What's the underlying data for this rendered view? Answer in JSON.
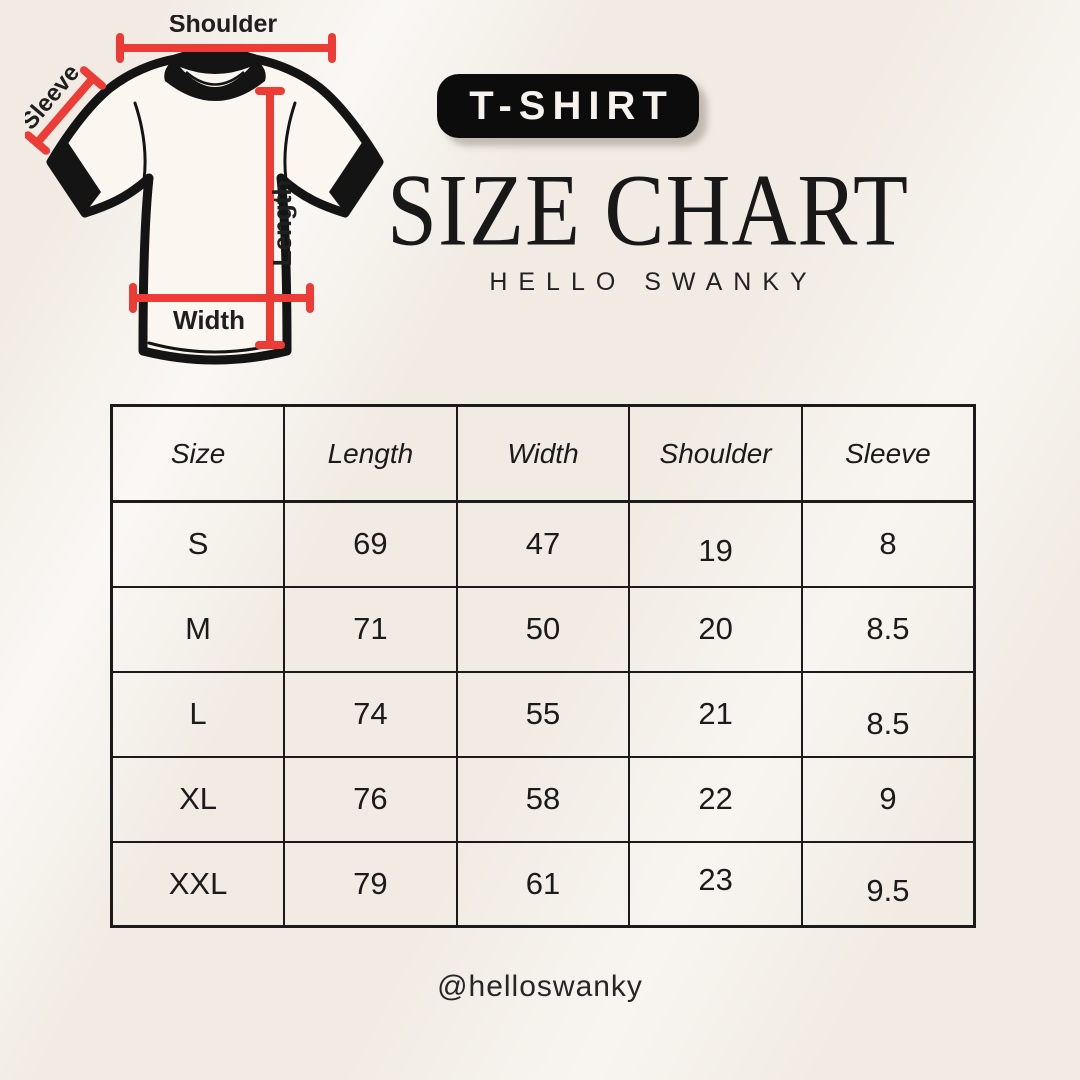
{
  "page": {
    "colors": {
      "background": "#f1ebe3",
      "accent_red": "#ed3b36",
      "ink": "#1b1b1b",
      "badge_bg": "#0c0c0c",
      "badge_text": "#f7f3ec"
    }
  },
  "header": {
    "badge": "T-SHIRT",
    "title": "SIZE CHART",
    "subtitle": "HELLO SWANKY"
  },
  "diagram": {
    "labels": {
      "shoulder": "Shoulder",
      "sleeve": "Sleeve",
      "length": "Length",
      "width": "Width"
    }
  },
  "chart_data": {
    "type": "table",
    "title": "SIZE CHART",
    "columns": [
      "Size",
      "Length",
      "Width",
      "Shoulder",
      "Sleeve"
    ],
    "rows": [
      [
        "S",
        "69",
        "47",
        "19",
        "8"
      ],
      [
        "M",
        "71",
        "50",
        "20",
        "8.5"
      ],
      [
        "L",
        "74",
        "55",
        "21",
        "8.5"
      ],
      [
        "XL",
        "76",
        "58",
        "22",
        "9"
      ],
      [
        "XXL",
        "79",
        "61",
        "23",
        "9.5"
      ]
    ]
  },
  "footer": {
    "handle": "@helloswanky"
  }
}
